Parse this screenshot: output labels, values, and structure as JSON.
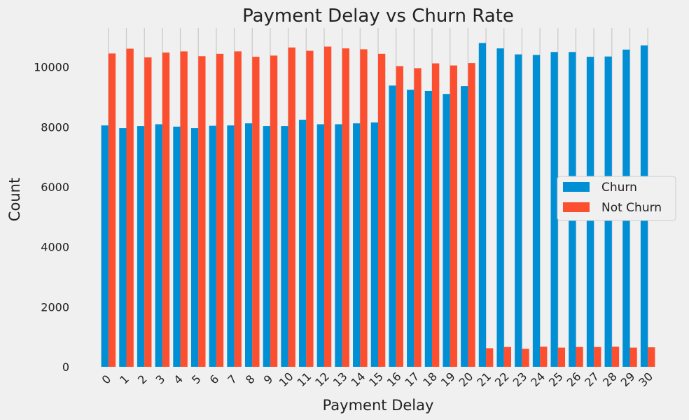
{
  "chart_data": {
    "type": "bar",
    "title": "Payment Delay vs Churn Rate",
    "xlabel": "Payment Delay",
    "ylabel": "Count",
    "ylim": [
      0,
      11300
    ],
    "yticks": [
      0,
      2000,
      4000,
      6000,
      8000,
      10000
    ],
    "grid": "vertical",
    "legend_position": "center-right",
    "categories": [
      "0",
      "1",
      "2",
      "3",
      "4",
      "5",
      "6",
      "7",
      "8",
      "9",
      "10",
      "11",
      "12",
      "13",
      "14",
      "15",
      "16",
      "17",
      "18",
      "19",
      "20",
      "21",
      "22",
      "23",
      "24",
      "25",
      "26",
      "27",
      "28",
      "29",
      "30"
    ],
    "series": [
      {
        "name": "Churn",
        "color": "#008fd5",
        "values": [
          8050,
          7960,
          8030,
          8090,
          8010,
          7960,
          8040,
          8050,
          8120,
          8030,
          8030,
          8240,
          8090,
          8090,
          8120,
          8150,
          9380,
          9240,
          9200,
          9100,
          9360,
          10800,
          10620,
          10420,
          10400,
          10500,
          10500,
          10340,
          10350,
          10580,
          10720
        ]
      },
      {
        "name": "Not Churn",
        "color": "#fc4f30",
        "values": [
          10450,
          10610,
          10320,
          10480,
          10520,
          10360,
          10440,
          10520,
          10340,
          10380,
          10650,
          10540,
          10680,
          10620,
          10590,
          10440,
          10030,
          9960,
          10120,
          10050,
          10130,
          620,
          660,
          600,
          670,
          640,
          660,
          660,
          670,
          640,
          650
        ]
      }
    ]
  }
}
